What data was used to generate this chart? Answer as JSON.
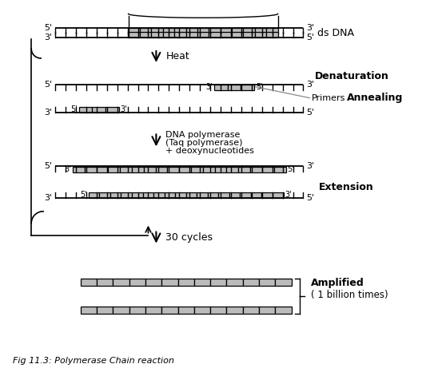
{
  "bg_color": "#ffffff",
  "fig_title": "Fig 11.3: Polymerase Chain reaction",
  "sc": "#000000",
  "gc": "#bbbbbb",
  "labels": {
    "ds_dna": "ds DNA",
    "denaturation": "Denaturation",
    "heat": "Heat",
    "primers": "Primers",
    "annealing": "Annealing",
    "dna_poly_line1": "DNA polymerase",
    "dna_poly_line2": "(Taq polymerase)",
    "dna_poly_line3": "+ deoxynucleotides",
    "extension": "Extension",
    "cycles": "30 cycles",
    "amplified": "Amplified",
    "billion": "( 1 billion times)"
  }
}
